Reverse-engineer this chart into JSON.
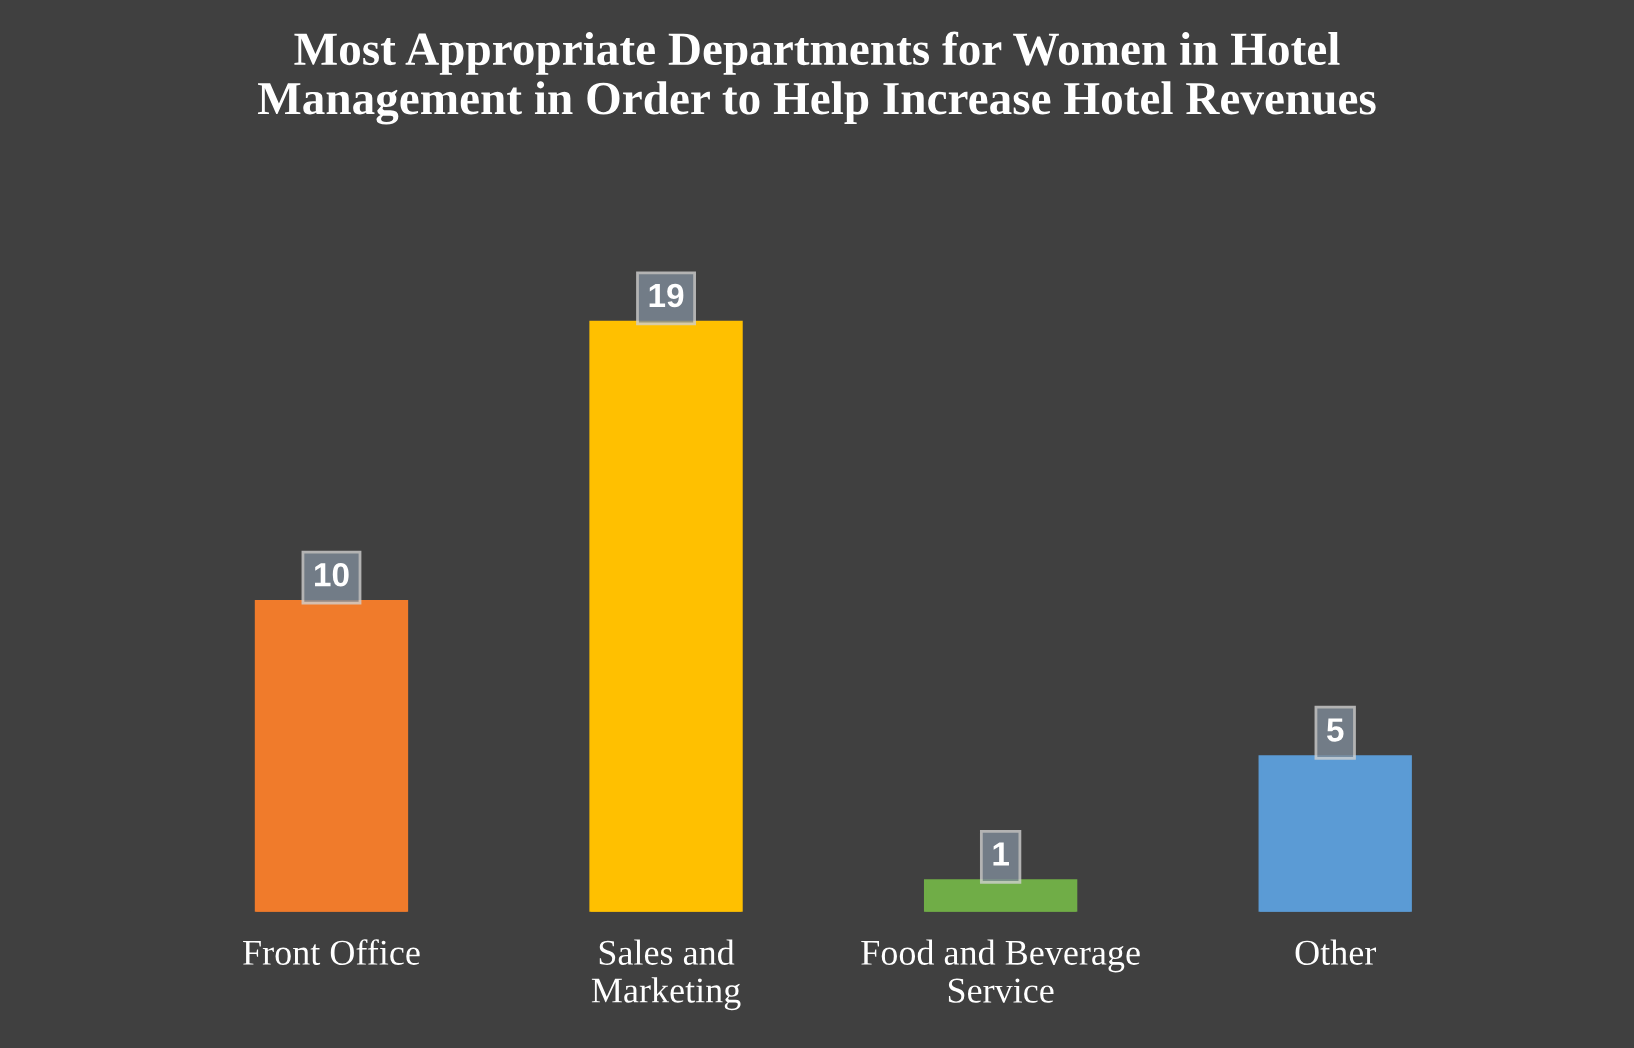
{
  "chart_data": {
    "type": "bar",
    "title": "Most Appropriate Departments for Women in Hotel\nManagement in Order to Help Increase Hotel Revenues",
    "categories": [
      "Front Office",
      "Sales and\nMarketing",
      "Food and Beverage\nService",
      "Other"
    ],
    "values": [
      10,
      19,
      1,
      5
    ],
    "colors": [
      "#f07b2b",
      "#ffc000",
      "#70ad47",
      "#5b9bd5"
    ],
    "data_labels": true,
    "grid": false,
    "legend": false
  }
}
